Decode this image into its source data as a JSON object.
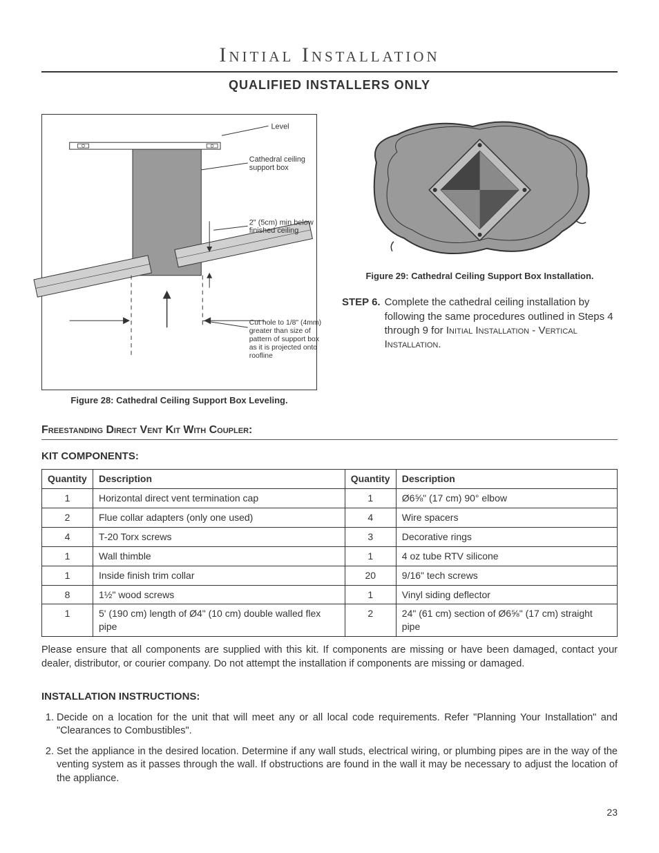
{
  "title": "Initial Installation",
  "subtitle": "QUALIFIED INSTALLERS ONLY",
  "figure28": {
    "caption": "Figure 28: Cathedral Ceiling Support Box Leveling.",
    "labels": {
      "level": "Level",
      "supportBox": "Cathedral ceiling support box",
      "minBelow": "2\" (5cm) min below finished ceiling",
      "cutHole": "Cut hole to 1/8\" (4mm) greater than size of pattern of support box as it is projected onto roofline"
    }
  },
  "figure29": {
    "caption": "Figure 29: Cathedral Ceiling Support Box Installation."
  },
  "step6": {
    "label": "STEP 6.",
    "text": "Complete the cathedral ceiling installation by following the same procedures outlined in Steps 4 through 9 for Initial Installation - Vertical Installation."
  },
  "sectionHeader": "Freestanding Direct Vent Kit With Coupler:",
  "kitHeader": "KIT COMPONENTS:",
  "kitTable": {
    "columns": [
      "Quantity",
      "Description",
      "Quantity",
      "Description"
    ],
    "rows": [
      [
        "1",
        "Horizontal direct vent termination cap",
        "1",
        "Ø6⅝\" (17 cm) 90° elbow"
      ],
      [
        "2",
        "Flue collar adapters (only one used)",
        "4",
        "Wire spacers"
      ],
      [
        "4",
        "T-20 Torx screws",
        "3",
        "Decorative rings"
      ],
      [
        "1",
        "Wall thimble",
        "1",
        "4 oz tube RTV silicone"
      ],
      [
        "1",
        "Inside finish trim collar",
        "20",
        "9/16\" tech screws"
      ],
      [
        "8",
        "1½\" wood screws",
        "1",
        "Vinyl siding deflector"
      ],
      [
        "1",
        "5' (190 cm) length of Ø4\" (10 cm) double walled flex pipe",
        "2",
        "24\" (61 cm) section of Ø6⅝\" (17 cm) straight pipe"
      ]
    ]
  },
  "kitNote": "Please ensure that all components are supplied with this kit. If components are missing or have been damaged, contact your dealer, distributor, or courier company. Do not attempt the installation if components are missing or damaged.",
  "instHeader": "INSTALLATION INSTRUCTIONS:",
  "instructions": [
    "Decide on a location for the unit that will meet any or all local code requirements. Refer \"Planning Your Installation\" and \"Clearances to Combustibles\".",
    "Set the appliance in the desired location. Determine if any wall studs, electrical wiring, or plumbing pipes are in the way of the venting system as it passes through the wall. If obstructions are found in the wall it may be necessary to adjust the location of the appliance."
  ],
  "pageNumber": "23",
  "colors": {
    "text": "#333333",
    "border": "#333333",
    "diagramFill": "#9a9a9a",
    "diagramDark": "#6b6b6b",
    "diagramLight": "#d0d0d0"
  }
}
